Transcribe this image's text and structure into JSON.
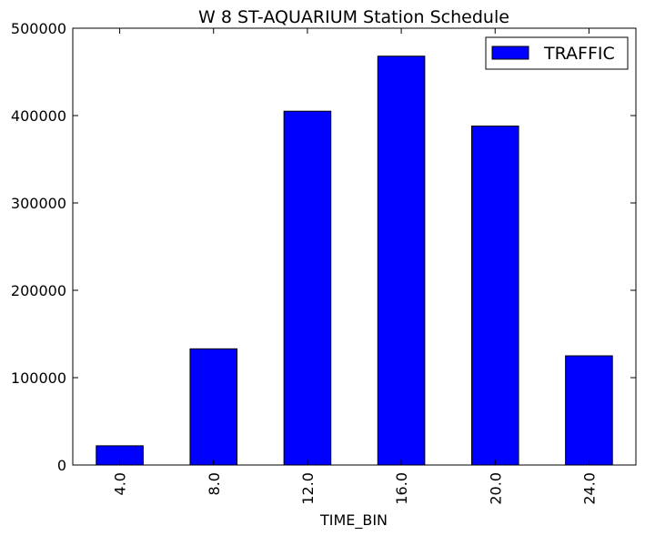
{
  "chart_data": {
    "type": "bar",
    "title": "W 8 ST-AQUARIUM Station Schedule",
    "xlabel": "TIME_BIN",
    "ylabel": "",
    "categories": [
      "4.0",
      "8.0",
      "12.0",
      "16.0",
      "20.0",
      "24.0"
    ],
    "series": [
      {
        "name": "TRAFFIC",
        "values": [
          22000,
          133000,
          405000,
          468000,
          388000,
          125000
        ],
        "color": "#0000ff"
      }
    ],
    "ylim": [
      0,
      500000
    ],
    "yticks": [
      "0",
      "100000",
      "200000",
      "300000",
      "400000",
      "500000"
    ],
    "grid": false,
    "legend_position": "top-right",
    "x_tick_rotation": "vertical"
  }
}
